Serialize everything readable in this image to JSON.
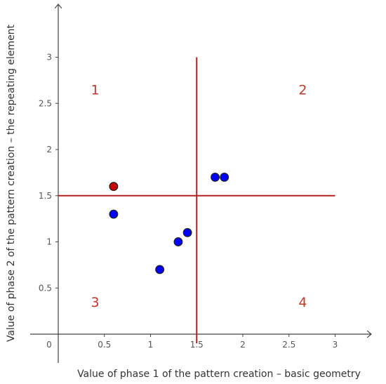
{
  "chart_data": {
    "type": "scatter",
    "title": "",
    "xlabel": "Value of phase 1 of the pattern creation – basic geometry",
    "ylabel": "Value of phase 2 of the pattern creation – the repeating element",
    "xlim": [
      -0.3,
      3.5
    ],
    "ylim": [
      -0.3,
      3.6
    ],
    "grid": false,
    "x_ticks": [
      {
        "value": 0,
        "label": "0"
      },
      {
        "value": 0.5,
        "label": "0.5"
      },
      {
        "value": 1,
        "label": "1"
      },
      {
        "value": 1.5,
        "label": "1.5"
      },
      {
        "value": 2,
        "label": "2"
      },
      {
        "value": 2.5,
        "label": "2.5"
      },
      {
        "value": 3,
        "label": "3"
      }
    ],
    "y_ticks": [
      {
        "value": 0.5,
        "label": "0.5"
      },
      {
        "value": 1,
        "label": "1"
      },
      {
        "value": 1.5,
        "label": "1.5"
      },
      {
        "value": 2,
        "label": "2"
      },
      {
        "value": 2.5,
        "label": "2.5"
      },
      {
        "value": 3,
        "label": "3"
      }
    ],
    "divider_lines": {
      "x": 1.5,
      "y": 1.5,
      "x_range": [
        0,
        3
      ],
      "y_range": [
        -0.1,
        3
      ],
      "color": "#b22222"
    },
    "quadrant_labels": [
      {
        "label": "1",
        "x": 0.4,
        "y": 2.65
      },
      {
        "label": "2",
        "x": 2.65,
        "y": 2.65
      },
      {
        "label": "3",
        "x": 0.4,
        "y": 0.35
      },
      {
        "label": "4",
        "x": 2.65,
        "y": 0.35
      }
    ],
    "quadrant_label_color": "#c0392b",
    "series": [
      {
        "color": "#0000ff",
        "points": [
          {
            "x": 0.6,
            "y": 1.3
          },
          {
            "x": 1.1,
            "y": 0.7
          },
          {
            "x": 1.3,
            "y": 1.0
          },
          {
            "x": 1.4,
            "y": 1.1
          },
          {
            "x": 1.7,
            "y": 1.7
          },
          {
            "x": 1.8,
            "y": 1.7
          }
        ]
      },
      {
        "color": "#cc0000",
        "points": [
          {
            "x": 0.6,
            "y": 1.6
          }
        ]
      }
    ]
  }
}
